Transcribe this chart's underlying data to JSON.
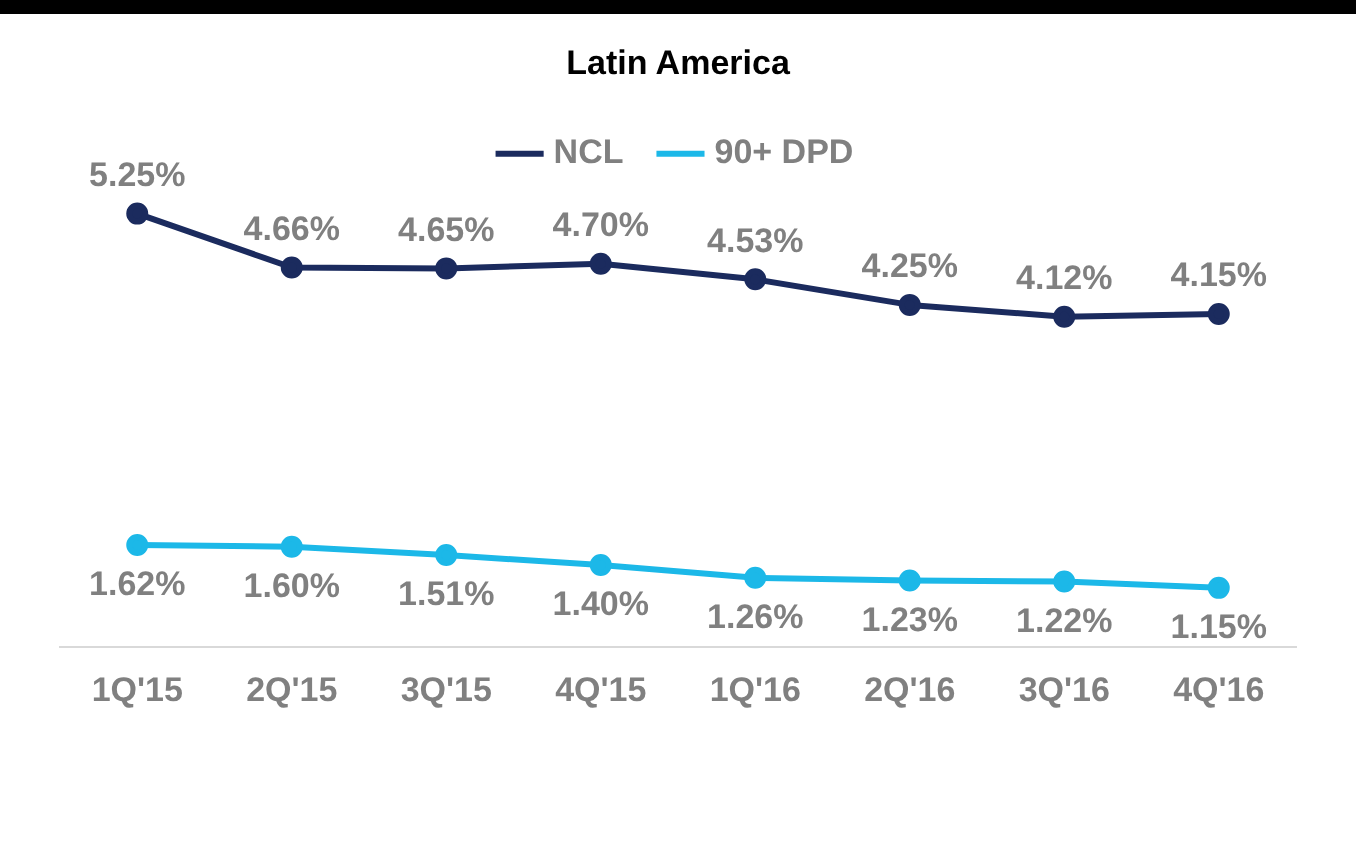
{
  "chart_data": {
    "type": "line",
    "title": "Latin America",
    "categories": [
      "1Q'15",
      "2Q'15",
      "3Q'15",
      "4Q'15",
      "1Q'16",
      "2Q'16",
      "3Q'16",
      "4Q'16"
    ],
    "series": [
      {
        "name": "NCL",
        "color": "#1b2b5e",
        "values": [
          5.25,
          4.66,
          4.65,
          4.7,
          4.53,
          4.25,
          4.12,
          4.15
        ],
        "value_labels": [
          "5.25%",
          "4.66%",
          "4.65%",
          "4.70%",
          "4.53%",
          "4.25%",
          "4.12%",
          "4.15%"
        ]
      },
      {
        "name": "90+ DPD",
        "color": "#1cb8e8",
        "values": [
          1.62,
          1.6,
          1.51,
          1.4,
          1.26,
          1.23,
          1.22,
          1.15
        ],
        "value_labels": [
          "1.62%",
          "1.60%",
          "1.51%",
          "1.40%",
          "1.26%",
          "1.23%",
          "1.22%",
          "1.15%"
        ]
      }
    ],
    "legend": "top",
    "marker": "circle",
    "line_style": "solid",
    "grid": false
  }
}
